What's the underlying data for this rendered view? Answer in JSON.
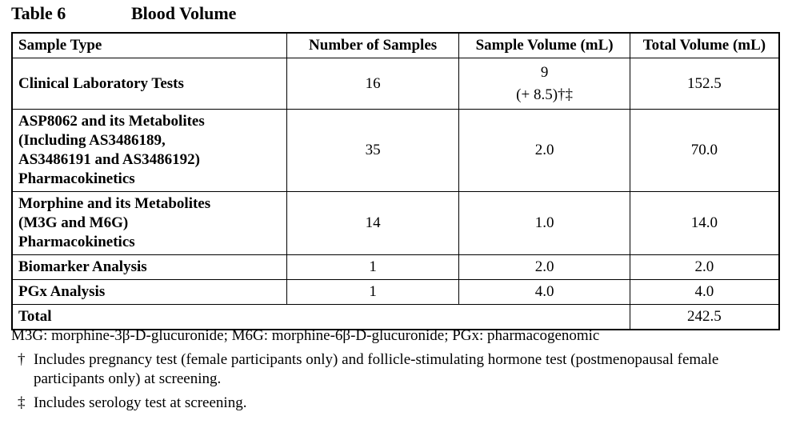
{
  "caption": {
    "label": "Table 6",
    "title": "Blood Volume"
  },
  "table": {
    "headers": [
      "Sample Type",
      "Number of Samples",
      "Sample Volume (mL)",
      "Total Volume (mL)"
    ],
    "rows": [
      {
        "type_lines": [
          "Clinical Laboratory Tests"
        ],
        "count": "16",
        "volume": "9",
        "volume_extra": "(+ 8.5)†‡",
        "total": "152.5"
      },
      {
        "type_lines": [
          "ASP8062 and its Metabolites",
          "(Including AS3486189,",
          "AS3486191 and AS3486192)",
          "Pharmacokinetics"
        ],
        "count": "35",
        "volume": "2.0",
        "total": "70.0"
      },
      {
        "type_lines": [
          "Morphine and its Metabolites",
          "(M3G and M6G)",
          "Pharmacokinetics"
        ],
        "count": "14",
        "volume": "1.0",
        "total": "14.0"
      },
      {
        "type_lines": [
          "Biomarker Analysis"
        ],
        "count": "1",
        "volume": "2.0",
        "total": "2.0"
      },
      {
        "type_lines": [
          "PGx Analysis"
        ],
        "count": "1",
        "volume": "4.0",
        "total": "4.0"
      }
    ],
    "total_row": {
      "label": "Total",
      "value": "242.5"
    }
  },
  "notes": {
    "abbreviations": "M3G: morphine-3β-D-glucuronide; M6G: morphine-6β-D-glucuronide; PGx: pharmacogenomic",
    "footnotes": [
      {
        "symbol": "†",
        "text": "Includes pregnancy test (female participants only) and follicle-stimulating hormone test (postmenopausal female participants only) at screening."
      },
      {
        "symbol": "‡",
        "text": "Includes serology test at screening."
      }
    ]
  }
}
